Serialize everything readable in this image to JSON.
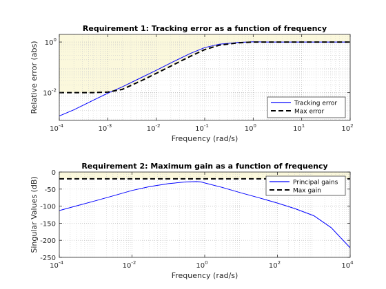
{
  "chart_data": [
    {
      "type": "line",
      "title": "Requirement 1: Tracking error as a function of frequency",
      "xlabel": "Frequency (rad/s)",
      "ylabel": "Relative error (abs)",
      "xscale": "log",
      "yscale": "log",
      "xlim": [
        0.0001,
        100
      ],
      "ylim": [
        0.0008,
        2
      ],
      "grid": true,
      "minor_grid": true,
      "legend_position": "bottom-right",
      "shaded_region": {
        "color": "#fbf8dc",
        "description": "area above Max error curve"
      },
      "x_ticks": [
        {
          "base": "10",
          "exp": "-4"
        },
        {
          "base": "10",
          "exp": "-3"
        },
        {
          "base": "10",
          "exp": "-2"
        },
        {
          "base": "10",
          "exp": "-1"
        },
        {
          "base": "10",
          "exp": "0"
        },
        {
          "base": "10",
          "exp": "1"
        },
        {
          "base": "10",
          "exp": "2"
        }
      ],
      "y_ticks": [
        {
          "base": "10",
          "exp": "-2",
          "value": 0.01
        },
        {
          "base": "10",
          "exp": "0",
          "value": 1
        }
      ],
      "series": [
        {
          "name": "Tracking error",
          "color": "#0000ff",
          "style": "solid",
          "x": [
            0.0001,
            0.0002,
            0.0005,
            0.001,
            0.002,
            0.005,
            0.01,
            0.02,
            0.05,
            0.1,
            0.2,
            0.5,
            1,
            2,
            5,
            10,
            100
          ],
          "y": [
            0.0012,
            0.0021,
            0.005,
            0.0095,
            0.017,
            0.04,
            0.076,
            0.15,
            0.35,
            0.6,
            0.82,
            0.97,
            1.02,
            1.0,
            1.0,
            1.0,
            1.0
          ]
        },
        {
          "name": "Max error",
          "color": "#000000",
          "style": "dashed",
          "x": [
            0.0001,
            0.0005,
            0.001,
            0.002,
            0.005,
            0.01,
            0.02,
            0.05,
            0.1,
            0.2,
            0.5,
            1,
            10,
            100
          ],
          "y": [
            0.01,
            0.01,
            0.0105,
            0.0135,
            0.03,
            0.058,
            0.112,
            0.27,
            0.5,
            0.75,
            0.93,
            1.0,
            1.0,
            1.0
          ]
        }
      ]
    },
    {
      "type": "line",
      "title": "Requirement 2: Maximum gain as a function of frequency",
      "xlabel": "Frequency (rad/s)",
      "ylabel": "Singular Values (dB)",
      "xscale": "log",
      "xlim": [
        0.0001,
        10000
      ],
      "ylim": [
        -250,
        0
      ],
      "grid": true,
      "minor_grid": true,
      "legend_position": "top-right",
      "shaded_region": {
        "color": "#fbf8dc",
        "description": "area above Max gain line"
      },
      "x_ticks": [
        {
          "base": "10",
          "exp": "-4"
        },
        {
          "base": "10",
          "exp": "-2"
        },
        {
          "base": "10",
          "exp": "0"
        },
        {
          "base": "10",
          "exp": "2"
        },
        {
          "base": "10",
          "exp": "4"
        }
      ],
      "y_ticks": [
        "0",
        "-50",
        "-100",
        "-150",
        "-200",
        "-250"
      ],
      "series": [
        {
          "name": "Principal gains",
          "color": "#0000ff",
          "style": "solid",
          "x": [
            0.0001,
            0.0003,
            0.001,
            0.003,
            0.01,
            0.03,
            0.1,
            0.3,
            0.6,
            0.8,
            1,
            3,
            10,
            30,
            100,
            300,
            1000,
            3000,
            10000
          ],
          "y": [
            -113,
            -99,
            -84,
            -70,
            -54,
            -43,
            -34,
            -29,
            -28,
            -29,
            -32,
            -45,
            -61,
            -75,
            -91,
            -107,
            -128,
            -163,
            -222
          ]
        },
        {
          "name": "Max gain",
          "color": "#000000",
          "style": "dashed",
          "x": [
            0.0001,
            10000
          ],
          "y": [
            -20,
            -20
          ]
        }
      ]
    }
  ]
}
